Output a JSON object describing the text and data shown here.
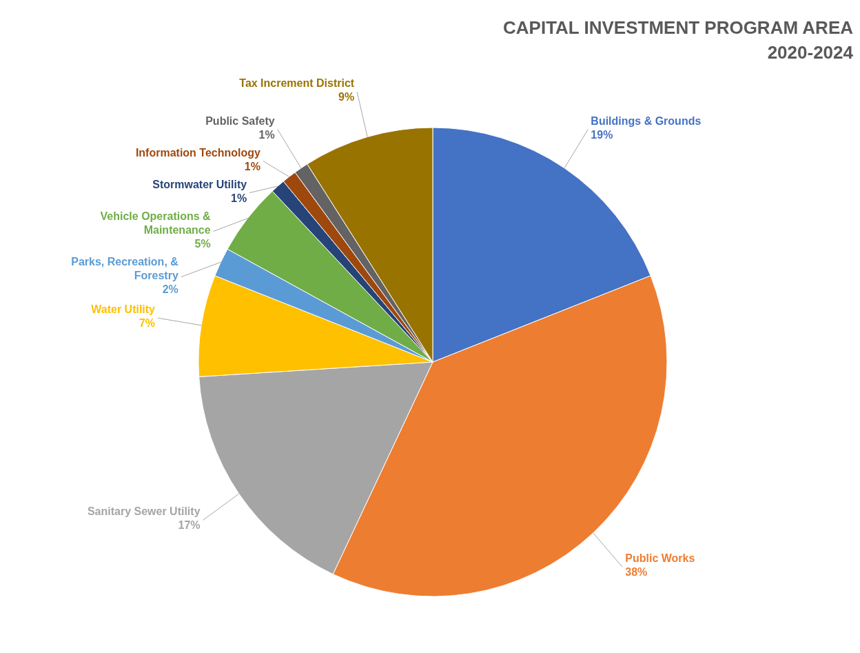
{
  "chart_data": {
    "type": "pie",
    "title": "CAPITAL INVESTMENT PROGRAM AREA 2020-2024",
    "categories": [
      "Buildings & Grounds",
      "Public Works",
      "Sanitary Sewer Utility",
      "Water Utility",
      "Parks, Recreation, & Forestry",
      "Vehicle Operations & Maintenance",
      "Stormwater Utility",
      "Information Technology",
      "Public Safety",
      "Tax Increment District"
    ],
    "values": [
      19,
      38,
      17,
      7,
      2,
      5,
      1,
      1,
      1,
      9
    ],
    "value_labels": [
      "19%",
      "38%",
      "17%",
      "7%",
      "2%",
      "5%",
      "1%",
      "1%",
      "1%",
      "9%"
    ],
    "colors": [
      "#4472c4",
      "#ed7d31",
      "#a5a5a5",
      "#ffc000",
      "#5b9bd5",
      "#70ad47",
      "#264478",
      "#9e480e",
      "#636363",
      "#997300"
    ],
    "legend": false
  }
}
